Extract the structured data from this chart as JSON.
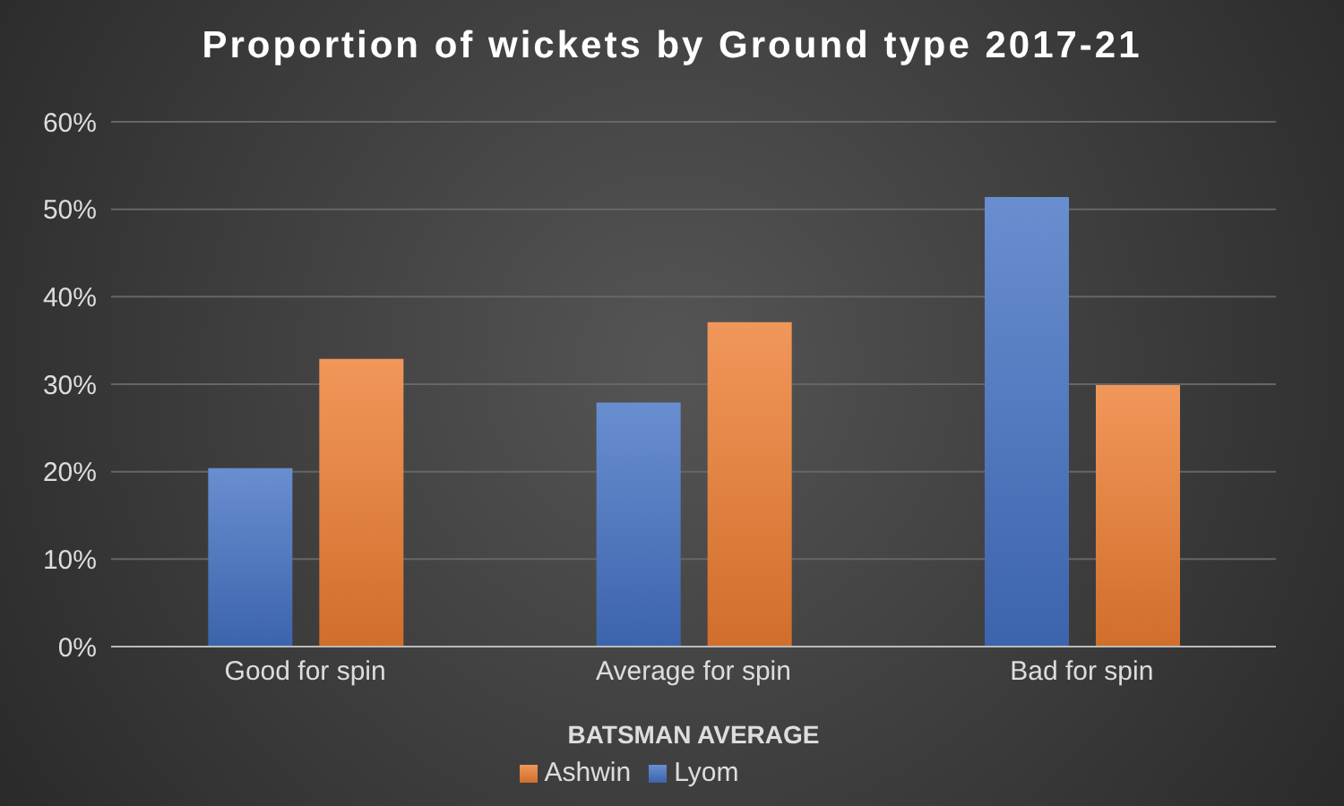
{
  "chart_data": {
    "type": "bar",
    "title": "Proportion of wickets by Ground type 2017-21",
    "xlabel": "BATSMAN AVERAGE",
    "categories": [
      "Good for spin",
      "Average for spin",
      "Bad for spin"
    ],
    "series": [
      {
        "name": "Lyom",
        "color": "#4472c4",
        "values": [
          20.4,
          27.9,
          51.4
        ]
      },
      {
        "name": "Ashwin",
        "color": "#ed7d31",
        "values": [
          32.9,
          37.1,
          29.9
        ]
      }
    ],
    "ylim": [
      0,
      60
    ],
    "yticks": [
      {
        "value": 0,
        "label": "0%"
      },
      {
        "value": 10,
        "label": "10%"
      },
      {
        "value": 20,
        "label": "20%"
      },
      {
        "value": 30,
        "label": "30%"
      },
      {
        "value": 40,
        "label": "40%"
      },
      {
        "value": 50,
        "label": "50%"
      },
      {
        "value": 60,
        "label": "60%"
      }
    ],
    "grid": "y",
    "legend": "bottom"
  }
}
